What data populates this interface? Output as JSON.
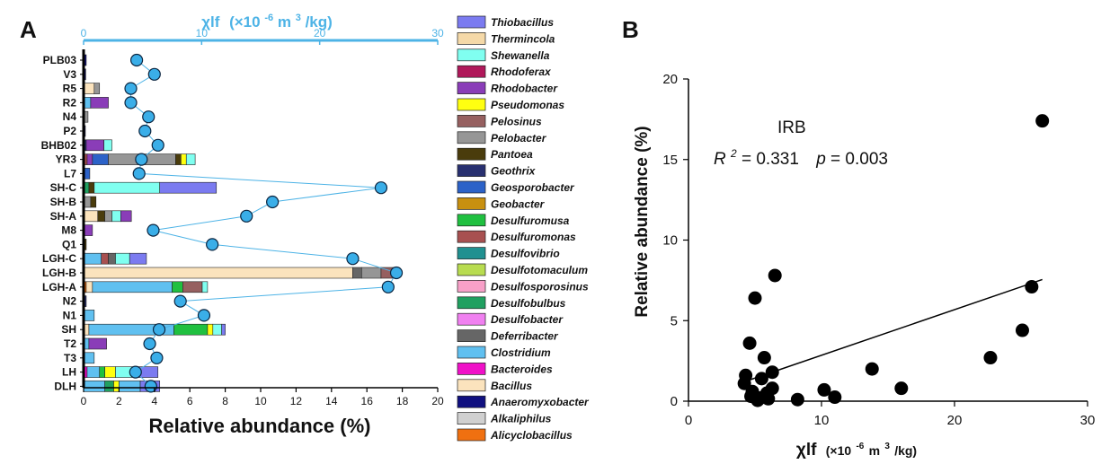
{
  "panels": {
    "a_label": "A",
    "b_label": "B"
  },
  "colors": {
    "top_axis": "#4db3e6",
    "dot_fill": "#3aaee8",
    "connector": "#4db3e6",
    "axis": "#000000"
  },
  "chart_data": [
    {
      "id": "A",
      "type": "bar",
      "orientation": "horizontal",
      "stacked": true,
      "xlabel": "Relative abundance (%)",
      "xlim": [
        0,
        20
      ],
      "xticks": [
        "0",
        "2",
        "4",
        "6",
        "8",
        "10",
        "12",
        "14",
        "16",
        "18",
        "20"
      ],
      "top_axis": {
        "label_prefix": "χlf",
        "label_unit_open": "(×10",
        "label_unit_exp": "-6",
        "label_unit_close": "m",
        "label_unit_exp2": "3",
        "label_unit_tail": "/kg)",
        "range": [
          0,
          30
        ],
        "ticks": [
          "0",
          "10",
          "20",
          "30"
        ]
      },
      "categories": [
        "PLB03",
        "V3",
        "R5",
        "R2",
        "N4",
        "P2",
        "BHB02",
        "YR3",
        "L7",
        "SH-C",
        "SH-B",
        "SH-A",
        "M8",
        "Q1",
        "LGH-C",
        "LGH-B",
        "LGH-A",
        "N2",
        "N1",
        "SH",
        "T2",
        "T3",
        "LH",
        "DLH"
      ],
      "legend": [
        {
          "name": "Thiobacillus",
          "color": "#7b7bf0"
        },
        {
          "name": "Thermincola",
          "color": "#f5d9a8"
        },
        {
          "name": "Shewanella",
          "color": "#80fff0"
        },
        {
          "name": "Rhodoferax",
          "color": "#b0185a"
        },
        {
          "name": "Rhodobacter",
          "color": "#8a3db8"
        },
        {
          "name": "Pseudomonas",
          "color": "#ffff10"
        },
        {
          "name": "Pelosinus",
          "color": "#966060"
        },
        {
          "name": "Pelobacter",
          "color": "#969696"
        },
        {
          "name": "Pantoea",
          "color": "#4a3c0c"
        },
        {
          "name": "Geothrix",
          "color": "#283070"
        },
        {
          "name": "Geosporobacter",
          "color": "#2c62c8"
        },
        {
          "name": "Geobacter",
          "color": "#c89010"
        },
        {
          "name": "Desulfuromusa",
          "color": "#20c040"
        },
        {
          "name": "Desulfuromonas",
          "color": "#a85050"
        },
        {
          "name": "Desulfovibrio",
          "color": "#209090"
        },
        {
          "name": "Desulfotomaculum",
          "color": "#b8dc50"
        },
        {
          "name": "Desulfosporosinus",
          "color": "#f8a0c8"
        },
        {
          "name": "Desulfobulbus",
          "color": "#20a060"
        },
        {
          "name": "Desulfobacter",
          "color": "#f080f0"
        },
        {
          "name": "Deferribacter",
          "color": "#666666"
        },
        {
          "name": "Clostridium",
          "color": "#60c0f0"
        },
        {
          "name": "Bacteroides",
          "color": "#f010c8"
        },
        {
          "name": "Bacillus",
          "color": "#fbe3bd"
        },
        {
          "name": "Anaeromyxobacter",
          "color": "#101080"
        },
        {
          "name": "Alkaliphilus",
          "color": "#d0d0d0"
        },
        {
          "name": "Alicyclobacillus",
          "color": "#f07010"
        }
      ],
      "stacks": [
        {
          "category": "PLB03",
          "segments": [
            {
              "genus": "Anaeromyxobacter",
              "value": 0.15
            }
          ]
        },
        {
          "category": "V3",
          "segments": [
            {
              "genus": "Anaeromyxobacter",
              "value": 0.12
            }
          ]
        },
        {
          "category": "R5",
          "segments": [
            {
              "genus": "Bacillus",
              "value": 0.6
            },
            {
              "genus": "Pelobacter",
              "value": 0.3
            }
          ]
        },
        {
          "category": "R2",
          "segments": [
            {
              "genus": "Clostridium",
              "value": 0.4
            },
            {
              "genus": "Rhodobacter",
              "value": 1.0
            }
          ]
        },
        {
          "category": "N4",
          "segments": [
            {
              "genus": "Pelobacter",
              "value": 0.25
            }
          ]
        },
        {
          "category": "P2",
          "segments": [
            {
              "genus": "Anaeromyxobacter",
              "value": 0.1
            }
          ]
        },
        {
          "category": "BHB02",
          "segments": [
            {
              "genus": "Geothrix",
              "value": 0.15
            },
            {
              "genus": "Rhodobacter",
              "value": 1.0
            },
            {
              "genus": "Shewanella",
              "value": 0.45
            }
          ]
        },
        {
          "category": "YR3",
          "segments": [
            {
              "genus": "Desulfuromonas",
              "value": 0.2
            },
            {
              "genus": "Rhodobacter",
              "value": 0.3
            },
            {
              "genus": "Geosporobacter",
              "value": 0.9
            },
            {
              "genus": "Pelobacter",
              "value": 3.8
            },
            {
              "genus": "Pantoea",
              "value": 0.3
            },
            {
              "genus": "Pseudomonas",
              "value": 0.3
            },
            {
              "genus": "Shewanella",
              "value": 0.5
            }
          ]
        },
        {
          "category": "L7",
          "segments": [
            {
              "genus": "Geosporobacter",
              "value": 0.35
            }
          ]
        },
        {
          "category": "SH-C",
          "segments": [
            {
              "genus": "Desulfobulbus",
              "value": 0.3
            },
            {
              "genus": "Pantoea",
              "value": 0.3
            },
            {
              "genus": "Shewanella",
              "value": 3.7
            },
            {
              "genus": "Thiobacillus",
              "value": 3.2
            }
          ]
        },
        {
          "category": "SH-B",
          "segments": [
            {
              "genus": "Pelobacter",
              "value": 0.4
            },
            {
              "genus": "Pantoea",
              "value": 0.3
            }
          ]
        },
        {
          "category": "SH-A",
          "segments": [
            {
              "genus": "Bacillus",
              "value": 0.8
            },
            {
              "genus": "Pantoea",
              "value": 0.4
            },
            {
              "genus": "Pelobacter",
              "value": 0.4
            },
            {
              "genus": "Shewanella",
              "value": 0.5
            },
            {
              "genus": "Rhodobacter",
              "value": 0.6
            }
          ]
        },
        {
          "category": "M8",
          "segments": [
            {
              "genus": "Rhodobacter",
              "value": 0.5
            }
          ]
        },
        {
          "category": "Q1",
          "segments": [
            {
              "genus": "Pantoea",
              "value": 0.15
            }
          ]
        },
        {
          "category": "LGH-C",
          "segments": [
            {
              "genus": "Clostridium",
              "value": 1.0
            },
            {
              "genus": "Desulfuromonas",
              "value": 0.4
            },
            {
              "genus": "Deferribacter",
              "value": 0.4
            },
            {
              "genus": "Shewanella",
              "value": 0.8
            },
            {
              "genus": "Thiobacillus",
              "value": 0.95
            }
          ]
        },
        {
          "category": "LGH-B",
          "segments": [
            {
              "genus": "Bacillus",
              "value": 15.2
            },
            {
              "genus": "Deferribacter",
              "value": 0.5
            },
            {
              "genus": "Pelobacter",
              "value": 1.1
            },
            {
              "genus": "Pelosinus",
              "value": 0.7
            }
          ]
        },
        {
          "category": "LGH-A",
          "segments": [
            {
              "genus": "Alicyclobacillus",
              "value": 0.15
            },
            {
              "genus": "Bacillus",
              "value": 0.35
            },
            {
              "genus": "Clostridium",
              "value": 4.5
            },
            {
              "genus": "Desulfuromusa",
              "value": 0.6
            },
            {
              "genus": "Pelosinus",
              "value": 1.1
            },
            {
              "genus": "Shewanella",
              "value": 0.3
            }
          ]
        },
        {
          "category": "N2",
          "segments": [
            {
              "genus": "Geothrix",
              "value": 0.15
            }
          ]
        },
        {
          "category": "N1",
          "segments": [
            {
              "genus": "Clostridium",
              "value": 0.6
            }
          ]
        },
        {
          "category": "SH",
          "segments": [
            {
              "genus": "Bacillus",
              "value": 0.3
            },
            {
              "genus": "Clostridium",
              "value": 4.8
            },
            {
              "genus": "Desulfuromusa",
              "value": 1.9
            },
            {
              "genus": "Pseudomonas",
              "value": 0.3
            },
            {
              "genus": "Shewanella",
              "value": 0.5
            },
            {
              "genus": "Thiobacillus",
              "value": 0.2
            }
          ]
        },
        {
          "category": "T2",
          "segments": [
            {
              "genus": "Clostridium",
              "value": 0.3
            },
            {
              "genus": "Rhodobacter",
              "value": 1.0
            }
          ]
        },
        {
          "category": "T3",
          "segments": [
            {
              "genus": "Clostridium",
              "value": 0.6
            }
          ]
        },
        {
          "category": "LH",
          "segments": [
            {
              "genus": "Bacteroides",
              "value": 0.2
            },
            {
              "genus": "Clostridium",
              "value": 0.7
            },
            {
              "genus": "Desulfuromusa",
              "value": 0.3
            },
            {
              "genus": "Pseudomonas",
              "value": 0.6
            },
            {
              "genus": "Shewanella",
              "value": 1.2
            },
            {
              "genus": "Thiobacillus",
              "value": 1.2
            }
          ]
        },
        {
          "category": "DLH",
          "segments": [
            {
              "genus": "Clostridium",
              "value": 1.2
            },
            {
              "genus": "Desulfobulbus",
              "value": 0.5
            },
            {
              "genus": "Pseudomonas",
              "value": 0.3
            },
            {
              "genus": "Clostridium",
              "value": 1.2
            },
            {
              "genus": "Thiobacillus",
              "value": 1.1
            }
          ]
        }
      ],
      "chi_lf": [
        {
          "category": "PLB03",
          "value": 4.5
        },
        {
          "category": "V3",
          "value": 6.0
        },
        {
          "category": "R5",
          "value": 4.0
        },
        {
          "category": "R2",
          "value": 4.0
        },
        {
          "category": "N4",
          "value": 5.5
        },
        {
          "category": "P2",
          "value": 5.2
        },
        {
          "category": "BHB02",
          "value": 6.3
        },
        {
          "category": "YR3",
          "value": 4.9
        },
        {
          "category": "L7",
          "value": 4.7
        },
        {
          "category": "SH-C",
          "value": 25.2
        },
        {
          "category": "SH-B",
          "value": 16.0
        },
        {
          "category": "SH-A",
          "value": 13.8
        },
        {
          "category": "M8",
          "value": 5.9
        },
        {
          "category": "Q1",
          "value": 10.9
        },
        {
          "category": "LGH-C",
          "value": 22.8
        },
        {
          "category": "LGH-B",
          "value": 26.5
        },
        {
          "category": "LGH-A",
          "value": 25.8
        },
        {
          "category": "N2",
          "value": 8.2
        },
        {
          "category": "N1",
          "value": 10.2
        },
        {
          "category": "SH",
          "value": 6.4
        },
        {
          "category": "T2",
          "value": 5.6
        },
        {
          "category": "T3",
          "value": 6.2
        },
        {
          "category": "LH",
          "value": 4.4
        },
        {
          "category": "DLH",
          "value": 5.7
        }
      ]
    },
    {
      "id": "B",
      "type": "scatter",
      "title": "IRB",
      "xlabel_prefix": "χlf",
      "xlabel_unit": "(×10",
      "xlabel_exp": "-6",
      "xlabel_tail": " m",
      "xlabel_exp2": "3",
      "xlabel_end": "/kg)",
      "ylabel": "Relative abundance (%)",
      "xlim": [
        0,
        30
      ],
      "ylim": [
        0,
        20
      ],
      "xticks": [
        "0",
        "10",
        "20",
        "30"
      ],
      "yticks": [
        "0",
        "5",
        "10",
        "15",
        "20"
      ],
      "annotation": {
        "r_symbol": "R",
        "r_exp": "2",
        "r_value": " = 0.331",
        "p_symbol": "p",
        "p_value": " = 0.003"
      },
      "points": [
        {
          "x": 26.6,
          "y": 17.4
        },
        {
          "x": 6.5,
          "y": 7.8
        },
        {
          "x": 25.8,
          "y": 7.1
        },
        {
          "x": 5.0,
          "y": 6.4
        },
        {
          "x": 25.1,
          "y": 4.4
        },
        {
          "x": 4.6,
          "y": 3.6
        },
        {
          "x": 5.7,
          "y": 2.7
        },
        {
          "x": 22.7,
          "y": 2.7
        },
        {
          "x": 13.8,
          "y": 2.0
        },
        {
          "x": 6.3,
          "y": 1.8
        },
        {
          "x": 4.3,
          "y": 1.6
        },
        {
          "x": 5.5,
          "y": 1.4
        },
        {
          "x": 4.2,
          "y": 1.1
        },
        {
          "x": 16.0,
          "y": 0.8
        },
        {
          "x": 10.2,
          "y": 0.7
        },
        {
          "x": 6.3,
          "y": 0.8
        },
        {
          "x": 5.9,
          "y": 0.5
        },
        {
          "x": 4.7,
          "y": 0.3
        },
        {
          "x": 5.4,
          "y": 0.2
        },
        {
          "x": 11.0,
          "y": 0.25
        },
        {
          "x": 8.2,
          "y": 0.1
        },
        {
          "x": 5.2,
          "y": 0.05
        },
        {
          "x": 6.0,
          "y": 0.15
        },
        {
          "x": 4.8,
          "y": 0.6
        }
      ],
      "fit_line": {
        "x": [
          4.0,
          26.6
        ],
        "y": [
          1.15,
          7.55
        ]
      }
    }
  ]
}
